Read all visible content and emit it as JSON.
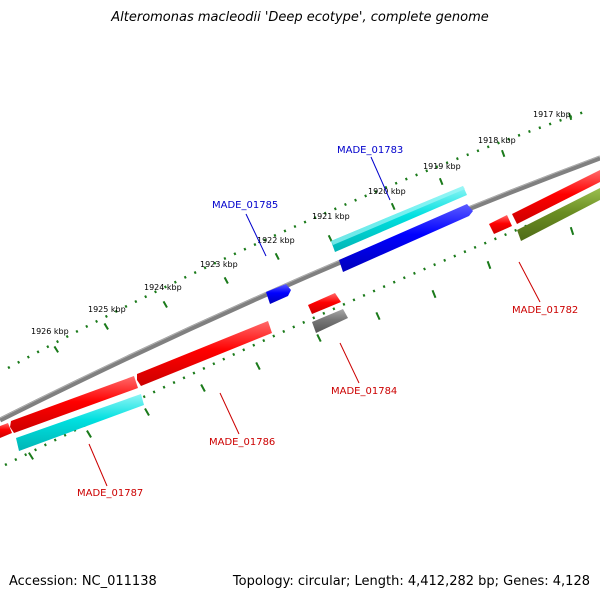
{
  "title": "Alteromonas macleodii 'Deep ecotype', complete genome",
  "footer": {
    "accession": "Accession: NC_011138",
    "summary": "Topology: circular; Length: 4,412,282 bp; Genes: 4,128"
  },
  "colors": {
    "backbone": "#808080",
    "scale_ticks": "#1a7a1a",
    "label_blue": "#0000cc",
    "label_red": "#cc0000",
    "gene_red": "#ff0000",
    "gene_cyan": "#00dddd",
    "gene_blue": "#0000ff",
    "gene_gray": "#777777",
    "gene_olive": "#6b8e23"
  },
  "scale": {
    "unit": "kbp",
    "labels": [
      "1917 kbp",
      "1918 kbp",
      "1919 kbp",
      "1920 kbp",
      "1921 kbp",
      "1922 kbp",
      "1923 kbp",
      "1924 kbp",
      "1925 kbp",
      "1926 kbp"
    ]
  },
  "genes": [
    {
      "name": "MADE_01782",
      "color": "gene_olive",
      "strand": "-"
    },
    {
      "name": "MADE_01783",
      "color": "gene_blue",
      "strand": "+"
    },
    {
      "name": "MADE_01784",
      "color": "gene_gray",
      "strand": "-"
    },
    {
      "name": "MADE_01785",
      "color": "gene_blue",
      "strand": "+"
    },
    {
      "name": "MADE_01786",
      "color": "gene_red",
      "strand": "+"
    },
    {
      "name": "MADE_01787",
      "color": "gene_cyan",
      "strand": "-"
    }
  ]
}
